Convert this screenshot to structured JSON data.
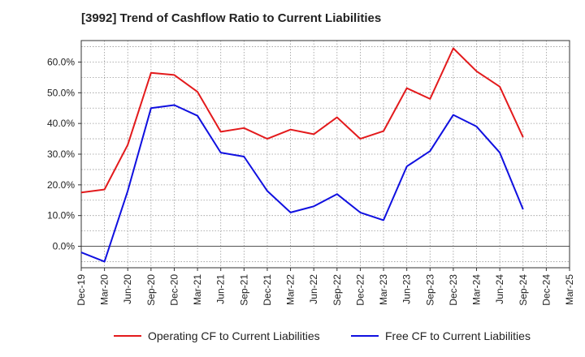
{
  "chart_data": {
    "type": "line",
    "title": "[3992]  Trend of Cashflow Ratio to Current Liabilities",
    "xlabel": "",
    "ylabel": "",
    "x": [
      "Dec-19",
      "Mar-20",
      "Jun-20",
      "Sep-20",
      "Dec-20",
      "Mar-21",
      "Jun-21",
      "Sep-21",
      "Dec-21",
      "Mar-22",
      "Jun-22",
      "Sep-22",
      "Dec-22",
      "Mar-23",
      "Jun-23",
      "Sep-23",
      "Dec-23",
      "Mar-24",
      "Jun-24",
      "Sep-24"
    ],
    "x_ticks": [
      "Dec-19",
      "Mar-20",
      "Jun-20",
      "Sep-20",
      "Dec-20",
      "Mar-21",
      "Jun-21",
      "Sep-21",
      "Dec-21",
      "Mar-22",
      "Jun-22",
      "Sep-22",
      "Dec-22",
      "Mar-23",
      "Jun-23",
      "Sep-23",
      "Dec-23",
      "Mar-24",
      "Jun-24",
      "Sep-24",
      "Dec-24",
      "Mar-25"
    ],
    "y_ticks": [
      "0.0%",
      "10.0%",
      "20.0%",
      "30.0%",
      "40.0%",
      "50.0%",
      "60.0%"
    ],
    "ylim": [
      -7,
      67
    ],
    "y_unit": "%",
    "grid": true,
    "legend_position": "bottom",
    "series": [
      {
        "name": "Operating CF to Current Liabilities",
        "color": "#e31a1c",
        "values": [
          17.5,
          18.5,
          33.0,
          56.5,
          55.8,
          50.3,
          37.3,
          38.5,
          35.0,
          38.0,
          36.5,
          42.0,
          35.0,
          37.5,
          51.5,
          48.0,
          64.5,
          57.0,
          52.0,
          35.5
        ]
      },
      {
        "name": "Free CF to Current Liabilities",
        "color": "#1010e0",
        "values": [
          -2.0,
          -5.0,
          18.0,
          45.0,
          46.0,
          42.5,
          30.5,
          29.2,
          18.0,
          11.0,
          13.0,
          17.0,
          11.0,
          8.5,
          26.0,
          31.0,
          42.8,
          39.0,
          30.5,
          12.0
        ]
      }
    ]
  }
}
